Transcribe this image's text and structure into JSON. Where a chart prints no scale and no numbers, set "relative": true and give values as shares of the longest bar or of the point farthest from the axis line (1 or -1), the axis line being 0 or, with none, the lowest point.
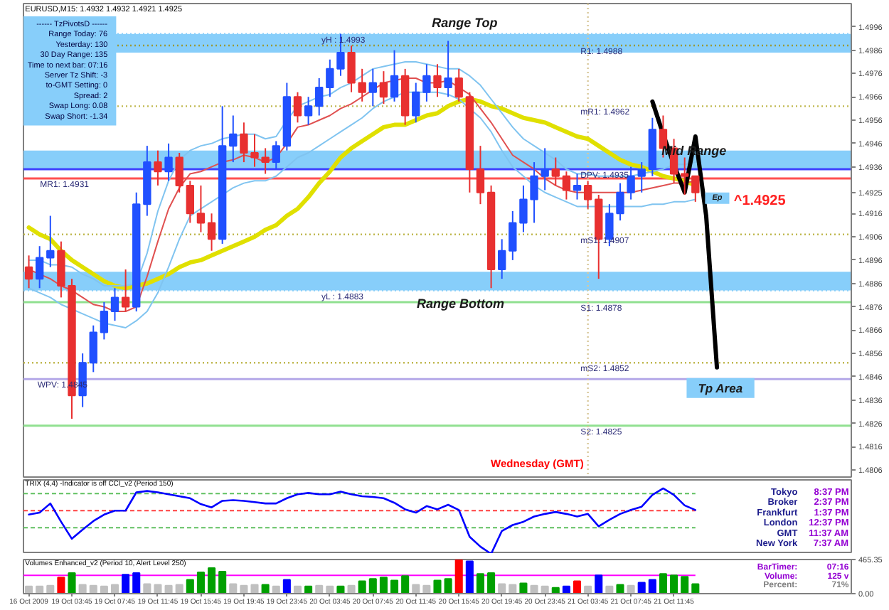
{
  "chart_data": [
    {
      "type": "candlestick",
      "title": "EURUSD,M15: 1.4932 1.4932 1.4921 1.4925",
      "categories": [
        "16 Oct 2009",
        null,
        null,
        null,
        "19 Oct 03:45",
        null,
        null,
        null,
        "19 Oct 07:45",
        null,
        null,
        null,
        "19 Oct 11:45",
        null,
        null,
        null,
        "19 Oct 15:45",
        null,
        null,
        null,
        "19 Oct 19:45",
        null,
        null,
        null,
        "19 Oct 23:45",
        null,
        null,
        null,
        "20 Oct 03:45",
        null,
        null,
        null,
        "20 Oct 07:45",
        null,
        null,
        null,
        "20 Oct 11:45",
        null,
        null,
        null,
        "20 Oct 15:45",
        null,
        null,
        null,
        "20 Oct 19:45",
        null,
        null,
        null,
        "20 Oct 23:45",
        null,
        null,
        null,
        "21 Oct 03:45",
        null,
        null,
        null,
        "21 Oct 07:45",
        null,
        null,
        null,
        "21 Oct 11:45",
        null,
        null,
        null,
        null,
        null,
        null,
        null,
        null,
        null,
        null,
        null,
        null,
        null,
        null,
        null,
        null
      ],
      "ohlc": [
        [
          1.4893,
          1.4898,
          1.4884,
          1.4888
        ],
        [
          1.4888,
          1.4902,
          1.4884,
          1.4897
        ],
        [
          1.4897,
          1.4915,
          1.4893,
          1.49
        ],
        [
          1.49,
          1.4904,
          1.488,
          1.4885
        ],
        [
          1.4885,
          1.4888,
          1.4828,
          1.4838
        ],
        [
          1.4838,
          1.4856,
          1.4833,
          1.4852
        ],
        [
          1.4852,
          1.4868,
          1.4848,
          1.4865
        ],
        [
          1.4865,
          1.4878,
          1.4862,
          1.4874
        ],
        [
          1.4874,
          1.4884,
          1.487,
          1.488
        ],
        [
          1.488,
          1.4892,
          1.4874,
          1.4876
        ],
        [
          1.4876,
          1.4925,
          1.4874,
          1.492
        ],
        [
          1.492,
          1.4945,
          1.4915,
          1.4938
        ],
        [
          1.4938,
          1.4943,
          1.4928,
          1.4934
        ],
        [
          1.4934,
          1.4946,
          1.493,
          1.494
        ],
        [
          1.494,
          1.4942,
          1.4925,
          1.4928
        ],
        [
          1.4928,
          1.493,
          1.4912,
          1.4916
        ],
        [
          1.4916,
          1.4928,
          1.4908,
          1.4912
        ],
        [
          1.4912,
          1.4916,
          1.49,
          1.4905
        ],
        [
          1.4905,
          1.4962,
          1.4903,
          1.4945
        ],
        [
          1.4945,
          1.4958,
          1.4938,
          1.495
        ],
        [
          1.495,
          1.4955,
          1.4938,
          1.4942
        ],
        [
          1.4942,
          1.495,
          1.4936,
          1.494
        ],
        [
          1.494,
          1.4944,
          1.4933,
          1.4938
        ],
        [
          1.4938,
          1.4947,
          1.4935,
          1.4945
        ],
        [
          1.4945,
          1.4972,
          1.4943,
          1.4966
        ],
        [
          1.4966,
          1.4968,
          1.4955,
          1.4958
        ],
        [
          1.4958,
          1.4966,
          1.4954,
          1.4962
        ],
        [
          1.4962,
          1.4974,
          1.4958,
          1.497
        ],
        [
          1.497,
          1.4982,
          1.4966,
          1.4978
        ],
        [
          1.4978,
          1.4993,
          1.4975,
          1.4985
        ],
        [
          1.4985,
          1.4988,
          1.4968,
          1.4972
        ],
        [
          1.4972,
          1.4978,
          1.4964,
          1.4968
        ],
        [
          1.4968,
          1.4978,
          1.4962,
          1.4972
        ],
        [
          1.4972,
          1.4977,
          1.4963,
          1.4966
        ],
        [
          1.4966,
          1.4986,
          1.4964,
          1.4975
        ],
        [
          1.4975,
          1.4978,
          1.4954,
          1.4958
        ],
        [
          1.4958,
          1.4972,
          1.4955,
          1.4968
        ],
        [
          1.4968,
          1.498,
          1.4964,
          1.4975
        ],
        [
          1.4975,
          1.498,
          1.4966,
          1.497
        ],
        [
          1.497,
          1.499,
          1.4966,
          1.4974
        ],
        [
          1.4974,
          1.4978,
          1.4964,
          1.4966
        ],
        [
          1.4966,
          1.4968,
          1.4925,
          1.4935
        ],
        [
          1.4935,
          1.4945,
          1.492,
          1.4925
        ],
        [
          1.4925,
          1.4928,
          1.4884,
          1.4892
        ],
        [
          1.4892,
          1.4905,
          1.4888,
          1.49
        ],
        [
          1.49,
          1.4917,
          1.4896,
          1.4912
        ],
        [
          1.4912,
          1.4928,
          1.4908,
          1.4922
        ],
        [
          1.4922,
          1.4938,
          1.4912,
          1.4932
        ],
        [
          1.4932,
          1.4944,
          1.4926,
          1.4935
        ],
        [
          1.4935,
          1.494,
          1.4928,
          1.4932
        ],
        [
          1.4932,
          1.4934,
          1.4922,
          1.4926
        ],
        [
          1.4926,
          1.4933,
          1.4922,
          1.4928
        ],
        [
          1.4928,
          1.493,
          1.4918,
          1.4922
        ],
        [
          1.4922,
          1.4924,
          1.4888,
          1.4905
        ],
        [
          1.4905,
          1.492,
          1.4902,
          1.4916
        ],
        [
          1.4916,
          1.4929,
          1.4913,
          1.4925
        ],
        [
          1.4925,
          1.4936,
          1.4922,
          1.4932
        ],
        [
          1.4932,
          1.4938,
          1.4925,
          1.4935
        ],
        [
          1.4935,
          1.4957,
          1.4932,
          1.4952
        ],
        [
          1.4952,
          1.4958,
          1.494,
          1.4944
        ],
        [
          1.4944,
          1.4948,
          1.4929,
          1.4933
        ],
        [
          1.4933,
          1.494,
          1.4924,
          1.4932
        ],
        [
          1.4932,
          1.4932,
          1.4921,
          1.4925
        ],
        null,
        null,
        null,
        null,
        null,
        null,
        null,
        null,
        null,
        null,
        null,
        null,
        null,
        null
      ],
      "colors": [
        "#e83030",
        "#2050ff",
        "#2050ff",
        "#e83030",
        "#e83030",
        "#2050ff",
        "#2050ff",
        "#2050ff",
        "#2050ff",
        "#e83030",
        "#2050ff",
        "#2050ff",
        "#e83030",
        "#2050ff",
        "#e83030",
        "#e83030",
        "#e83030",
        "#e83030",
        "#2050ff",
        "#2050ff",
        "#e83030",
        "#e83030",
        "#e83030",
        "#2050ff",
        "#2050ff",
        "#e83030",
        "#2050ff",
        "#2050ff",
        "#2050ff",
        "#2050ff",
        "#e83030",
        "#e83030",
        "#2050ff",
        "#e83030",
        "#2050ff",
        "#e83030",
        "#2050ff",
        "#2050ff",
        "#e83030",
        "#2050ff",
        "#e83030",
        "#e83030",
        "#e83030",
        "#e83030",
        "#2050ff",
        "#2050ff",
        "#2050ff",
        "#2050ff",
        "#2050ff",
        "#e83030",
        "#e83030",
        "#2050ff",
        "#e83030",
        "#e83030",
        "#2050ff",
        "#2050ff",
        "#2050ff",
        "#2050ff",
        "#2050ff",
        "#e83030",
        "#e83030",
        "#e83030",
        "#e83030",
        null,
        null,
        null,
        null,
        null,
        null,
        null,
        null,
        null,
        null,
        null,
        null,
        null,
        null
      ],
      "series": [
        {
          "type": "line",
          "color": "#e0e000",
          "values": [
            1.491,
            1.4907,
            1.4905,
            1.49,
            1.4896,
            1.4893,
            1.489,
            1.4887,
            1.4885,
            1.4884,
            1.4885,
            1.4886,
            1.4888,
            1.489,
            1.4893,
            1.4895,
            1.4896,
            1.4898,
            1.49,
            1.4902,
            1.4904,
            1.4906,
            1.4909,
            1.4911,
            1.4915,
            1.4918,
            1.4923,
            1.4929,
            1.4934,
            1.494,
            1.4944,
            1.4947,
            1.495,
            1.4953,
            1.4954,
            1.4954,
            1.4956,
            1.4958,
            1.4959,
            1.4962,
            1.4964,
            1.4965,
            1.4964,
            1.4962,
            1.4961,
            1.4959,
            1.4957,
            1.4956,
            1.4955,
            1.4953,
            1.4951,
            1.4949,
            1.4948,
            1.4945,
            1.4942,
            1.4939,
            1.4937,
            1.4936,
            1.4934,
            1.4932,
            1.4931,
            1.493,
            1.4928,
            null,
            null,
            null,
            null,
            null,
            null,
            null,
            null,
            null,
            null,
            null,
            null,
            null,
            null
          ]
        },
        {
          "type": "line",
          "color": "#e05050",
          "values": [
            1.4892,
            1.489,
            1.4888,
            1.4885,
            1.4883,
            1.488,
            1.4877,
            1.4876,
            1.4874,
            1.4874,
            1.4876,
            1.4889,
            1.4904,
            1.4918,
            1.4927,
            1.4933,
            1.4934,
            1.4936,
            1.4938,
            1.4939,
            1.4941,
            1.494,
            1.4938,
            1.494,
            1.4946,
            1.4953,
            1.4954,
            1.4956,
            1.4958,
            1.4961,
            1.4963,
            1.4966,
            1.4969,
            1.4972,
            1.4973,
            1.4974,
            1.4974,
            1.4972,
            1.4972,
            1.4973,
            1.497,
            1.4967,
            1.4961,
            1.4955,
            1.4948,
            1.4941,
            1.4938,
            1.4935,
            1.4931,
            1.4928,
            1.4926,
            1.4925,
            1.4925,
            1.4925,
            1.4925,
            1.4925,
            1.4925,
            1.4926,
            1.4927,
            1.4928,
            1.4929,
            1.4929,
            1.493,
            null,
            null,
            null,
            null,
            null,
            null,
            null,
            null,
            null,
            null,
            null,
            null,
            null,
            null
          ]
        },
        {
          "type": "line",
          "color": "#80c4f0",
          "values": [
            1.4896,
            1.4896,
            1.4894,
            1.4894,
            1.4893,
            1.489,
            1.4888,
            1.4885,
            1.4885,
            1.4885,
            1.4886,
            1.4899,
            1.4917,
            1.493,
            1.4939,
            1.4943,
            1.4945,
            1.4946,
            1.4948,
            1.4949,
            1.495,
            1.495,
            1.4948,
            1.4949,
            1.4956,
            1.4962,
            1.4964,
            1.4966,
            1.4967,
            1.497,
            1.4972,
            1.4975,
            1.4978,
            1.4979,
            1.498,
            1.4981,
            1.4981,
            1.498,
            1.4979,
            1.4978,
            1.4978,
            1.4975,
            1.4971,
            1.4965,
            1.4959,
            1.4953,
            1.4948,
            1.4945,
            1.4942,
            1.4939,
            1.4935,
            1.4933,
            1.4933,
            1.4932,
            1.4932,
            1.4932,
            1.4932,
            1.4933,
            1.4934,
            1.4935,
            1.4937,
            1.4937,
            1.4938,
            null,
            null,
            null,
            null,
            null,
            null,
            null,
            null,
            null,
            null,
            null,
            null,
            null,
            null
          ]
        },
        {
          "type": "line",
          "color": "#80c4f0",
          "values": [
            1.4884,
            1.4882,
            1.488,
            1.4877,
            1.4875,
            1.4873,
            1.4871,
            1.4869,
            1.4868,
            1.4867,
            1.487,
            1.4874,
            1.4882,
            1.4893,
            1.4905,
            1.4915,
            1.4918,
            1.4921,
            1.4924,
            1.4927,
            1.4929,
            1.493,
            1.493,
            1.4932,
            1.4936,
            1.494,
            1.4942,
            1.4945,
            1.4948,
            1.4951,
            1.4954,
            1.4957,
            1.4961,
            1.4964,
            1.4966,
            1.4968,
            1.4968,
            1.4968,
            1.4968,
            1.4967,
            1.4965,
            1.4961,
            1.4957,
            1.4951,
            1.4943,
            1.4936,
            1.4932,
            1.4928,
            1.4925,
            1.4923,
            1.4921,
            1.4919,
            1.4919,
            1.4919,
            1.4919,
            1.4919,
            1.4919,
            1.4919,
            1.492,
            1.492,
            1.4921,
            1.4921,
            1.4922,
            null,
            null,
            null,
            null,
            null,
            null,
            null,
            null,
            null,
            null,
            null,
            null,
            null,
            null
          ]
        },
        {
          "type": "line",
          "color": "#000000",
          "values": [
            null,
            null,
            null,
            null,
            null,
            null,
            null,
            null,
            null,
            null,
            null,
            null,
            null,
            null,
            null,
            null,
            null,
            null,
            null,
            null,
            null,
            null,
            null,
            null,
            null,
            null,
            null,
            null,
            null,
            null,
            null,
            null,
            null,
            null,
            null,
            null,
            null,
            null,
            null,
            null,
            null,
            null,
            null,
            null,
            null,
            null,
            null,
            null,
            null,
            null,
            null,
            null,
            null,
            null,
            null,
            null,
            null,
            null,
            1.4964,
            1.495,
            1.4937,
            1.4925,
            1.4949,
            1.4915,
            1.485,
            null,
            null,
            null,
            null,
            null,
            null,
            null,
            null,
            null,
            null,
            null,
            null
          ]
        }
      ],
      "ylim": [
        1.4803,
        1.5006
      ],
      "yticks": [
        1.4996,
        1.4986,
        1.4976,
        1.4966,
        1.4956,
        1.4946,
        1.4936,
        1.4925,
        1.4916,
        1.4906,
        1.4896,
        1.4886,
        1.4876,
        1.4866,
        1.4856,
        1.4846,
        1.4836,
        1.4826,
        1.4816,
        1.4806
      ],
      "bands": [
        {
          "axis": "y",
          "from": 1.4985,
          "to": 1.4993,
          "label": "Range Top",
          "color": "#87cefa"
        },
        {
          "axis": "y",
          "from": 1.4935,
          "to": 1.4943,
          "label": "Mid Range",
          "color": "#87cefa"
        },
        {
          "axis": "y",
          "from": 1.4883,
          "to": 1.4891,
          "label": "Range Bottom",
          "color": "#87cefa"
        }
      ],
      "ref_lines": [
        {
          "axis": "y",
          "value": 1.4993,
          "label": "yH : 1.4993",
          "color": "#87cefa",
          "line_style": "dotted"
        },
        {
          "axis": "y",
          "value": 1.4988,
          "label": "R1: 1.4988",
          "color": "#9a9a3a",
          "line_style": "dotted"
        },
        {
          "axis": "y",
          "value": 1.4962,
          "label": "mR1: 1.4962",
          "color": "#c0b850",
          "line_style": "dotted"
        },
        {
          "axis": "y",
          "value": 1.4935,
          "label": "DPV: 1.4935",
          "color": "#4040ff",
          "line_style": "solid"
        },
        {
          "axis": "y",
          "value": 1.4931,
          "label": "MR1: 1.4931",
          "color": "#ff5050",
          "line_style": "solid"
        },
        {
          "axis": "y",
          "value": 1.4907,
          "label": "mS1: 1.4907",
          "color": "#c0b850",
          "line_style": "dotted"
        },
        {
          "axis": "y",
          "value": 1.4883,
          "label": "yL : 1.4883",
          "color": "#87cefa",
          "line_style": "dotted"
        },
        {
          "axis": "y",
          "value": 1.4878,
          "label": "S1: 1.4878",
          "color": "#90e090",
          "line_style": "solid"
        },
        {
          "axis": "y",
          "value": 1.4852,
          "label": "mS2: 1.4852",
          "color": "#c0b850",
          "line_style": "dotted"
        },
        {
          "axis": "y",
          "value": 1.4845,
          "label": "WPV: 1.4845",
          "color": "#b4a8e8",
          "line_style": "solid"
        },
        {
          "axis": "y",
          "value": 1.4825,
          "label": "S2: 1.4825",
          "color": "#90e090",
          "line_style": "solid"
        },
        {
          "axis": "x",
          "value": "21 Oct 03:45",
          "label": "Wednesday (GMT)",
          "color": "#d8c89a",
          "line_style": "dotted"
        }
      ],
      "annotations": [
        "------ TzPivotsD ------\nRange Today: 76\nYesterday: 130\n30 Day Range: 135\nTime to next bar: 07:16\nServer Tz Shift: -3\nto-GMT Setting: 0\nSpread: 2\nSwap Long: 0.08\nSwap Short: -1.34",
        "Tp Area",
        "Ep",
        "^1.4925"
      ],
      "tick_labels": "y"
    },
    {
      "type": "line",
      "title": "TRIX (4,4) -Indicator is off CCI_v2 (Period 150)",
      "relative": true,
      "categories": [
        "16 Oct 2009",
        null,
        null,
        null,
        "19 Oct 03:45",
        null,
        null,
        null,
        "19 Oct 07:45",
        null,
        null,
        null,
        "19 Oct 11:45",
        null,
        null,
        null,
        "19 Oct 15:45",
        null,
        null,
        null,
        "19 Oct 19:45",
        null,
        null,
        null,
        "19 Oct 23:45",
        null,
        null,
        null,
        "20 Oct 03:45",
        null,
        null,
        null,
        "20 Oct 07:45",
        null,
        null,
        null,
        "20 Oct 11:45",
        null,
        null,
        null,
        "20 Oct 15:45",
        null,
        null,
        null,
        "20 Oct 19:45",
        null,
        null,
        null,
        "20 Oct 23:45",
        null,
        null,
        null,
        "21 Oct 03:45",
        null,
        null,
        null,
        "21 Oct 07:45",
        null,
        null,
        null,
        "21 Oct 11:45",
        null,
        null,
        null,
        null,
        null,
        null,
        null,
        null,
        null,
        null,
        null,
        null,
        null,
        null,
        null,
        null
      ],
      "series": [
        {
          "color": "#0000ff",
          "values": [
            0.6,
            0.63,
            0.77,
            0.49,
            0.23,
            0.37,
            0.5,
            0.6,
            0.66,
            0.66,
            0.94,
            0.96,
            0.94,
            0.91,
            0.88,
            0.85,
            0.76,
            0.71,
            0.81,
            0.82,
            0.81,
            0.79,
            0.77,
            0.77,
            0.85,
            0.91,
            0.93,
            0.91,
            0.91,
            0.95,
            0.91,
            0.88,
            0.87,
            0.85,
            0.78,
            0.68,
            0.63,
            0.73,
            0.68,
            0.75,
            0.67,
            0.26,
            0.11,
            0.0,
            0.35,
            0.44,
            0.49,
            0.57,
            0.61,
            0.64,
            0.61,
            0.57,
            0.61,
            0.42,
            0.52,
            0.61,
            0.67,
            0.72,
            0.9,
            1.0,
            0.9,
            0.74,
            0.67,
            null,
            null,
            null,
            null,
            null,
            null,
            null,
            null,
            null,
            null,
            null,
            null,
            null,
            null
          ]
        }
      ],
      "ref_lines": [
        {
          "axis": "y",
          "value": 0.92,
          "color": "#60c060",
          "line_style": "dashed"
        },
        {
          "axis": "y",
          "value": 0.66,
          "color": "#ff4040",
          "line_style": "dashed"
        },
        {
          "axis": "y",
          "value": 0.4,
          "color": "#60c060",
          "line_style": "dashed"
        }
      ],
      "annotations": [
        "Tokyo",
        "8:37 PM",
        "Broker",
        "2:37 PM",
        "Frankfurt",
        "1:37 PM",
        "London",
        "12:37 PM",
        "GMT",
        "11:37 AM",
        "New York",
        "7:37 AM"
      ],
      "tick_labels": "y"
    },
    {
      "type": "bar",
      "title": "Volumes Enhanced_v2 (Period 10, Alert Level 250)",
      "categories": [
        "16 Oct 2009",
        null,
        null,
        null,
        "19 Oct 03:45",
        null,
        null,
        null,
        "19 Oct 07:45",
        null,
        null,
        null,
        "19 Oct 11:45",
        null,
        null,
        null,
        "19 Oct 15:45",
        null,
        null,
        null,
        "19 Oct 19:45",
        null,
        null,
        null,
        "19 Oct 23:45",
        null,
        null,
        null,
        "20 Oct 03:45",
        null,
        null,
        null,
        "20 Oct 07:45",
        null,
        null,
        null,
        "20 Oct 11:45",
        null,
        null,
        null,
        "20 Oct 15:45",
        null,
        null,
        null,
        "20 Oct 19:45",
        null,
        null,
        null,
        "20 Oct 23:45",
        null,
        null,
        null,
        "21 Oct 03:45",
        null,
        null,
        null,
        "21 Oct 07:45",
        null,
        null,
        null,
        "21 Oct 11:45",
        null,
        null,
        null,
        null,
        null,
        null,
        null,
        null,
        null,
        null,
        null,
        null,
        null,
        null,
        null,
        null
      ],
      "values": [
        100,
        100,
        110,
        220,
        280,
        120,
        110,
        100,
        120,
        260,
        280,
        130,
        120,
        110,
        120,
        190,
        290,
        350,
        300,
        130,
        110,
        120,
        120,
        100,
        190,
        100,
        100,
        110,
        100,
        100,
        110,
        170,
        200,
        220,
        180,
        240,
        120,
        110,
        180,
        200,
        460,
        440,
        270,
        280,
        130,
        120,
        140,
        110,
        100,
        80,
        100,
        170,
        100,
        250,
        100,
        120,
        110,
        150,
        190,
        270,
        250,
        230,
        130,
        null,
        null,
        null,
        null,
        null,
        null,
        null,
        null,
        null,
        null,
        null,
        null,
        null,
        null
      ],
      "colors": [
        "#c0c0c0",
        "#c0c0c0",
        "#c0c0c0",
        "#ff0000",
        "#00a000",
        "#c0c0c0",
        "#c0c0c0",
        "#c0c0c0",
        "#c0c0c0",
        "#0000ff",
        "#0000ff",
        "#c0c0c0",
        "#c0c0c0",
        "#c0c0c0",
        "#c0c0c0",
        "#00a000",
        "#00a000",
        "#00a000",
        "#00a000",
        "#c0c0c0",
        "#c0c0c0",
        "#c0c0c0",
        "#00a000",
        "#c0c0c0",
        "#0000ff",
        "#c0c0c0",
        "#00a000",
        "#c0c0c0",
        "#c0c0c0",
        "#00a000",
        "#c0c0c0",
        "#00a000",
        "#00a000",
        "#00a000",
        "#00a000",
        "#00a000",
        "#c0c0c0",
        "#c0c0c0",
        "#00a000",
        "#00a000",
        "#ff0000",
        "#0000ff",
        "#00a000",
        "#00a000",
        "#c0c0c0",
        "#c0c0c0",
        "#00a000",
        "#c0c0c0",
        "#c0c0c0",
        "#00a000",
        "#0000ff",
        "#ff0000",
        "#c0c0c0",
        "#0000ff",
        "#c0c0c0",
        "#00a000",
        "#c0c0c0",
        "#0000ff",
        "#0000ff",
        "#00a000",
        "#00a000",
        "#00a000",
        "#00a000",
        null,
        null,
        null,
        null,
        null,
        null,
        null,
        null,
        null,
        null,
        null,
        null,
        null,
        null
      ],
      "ylim": [
        0,
        465.35
      ],
      "yticks": [
        {
          "value": 465.35,
          "label": "465.35"
        },
        {
          "value": 0,
          "label": "0.00"
        }
      ],
      "ref_lines": [
        {
          "axis": "y",
          "value": 250,
          "color": "#ff00ff",
          "line_style": "solid"
        }
      ],
      "annotations": [
        "BarTimer:",
        "07:16",
        "Volume:",
        "125 v",
        "Percent:",
        "71%"
      ]
    }
  ]
}
